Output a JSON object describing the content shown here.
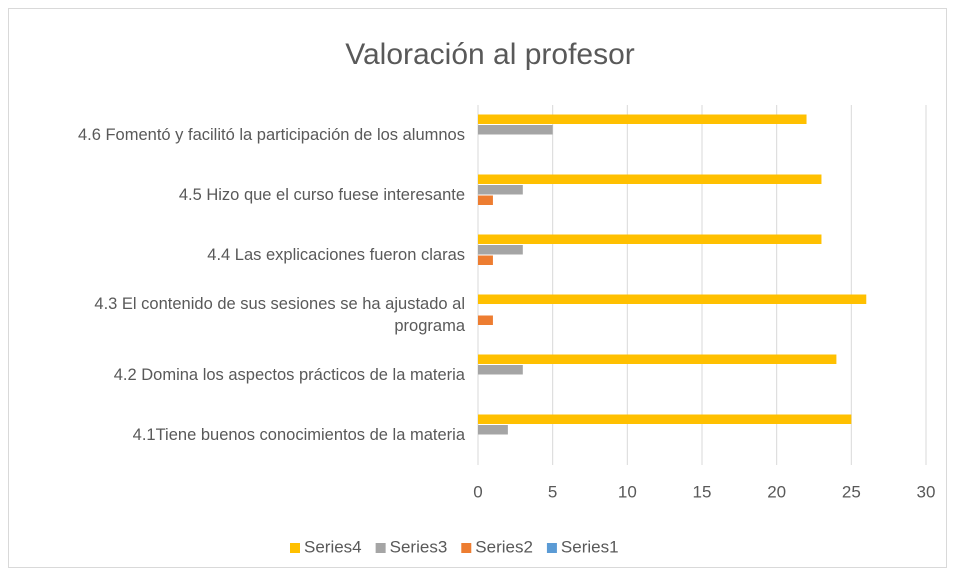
{
  "chart_data": {
    "type": "hbar",
    "title": "Valoración al profesor",
    "categories": [
      "4.6 Fomentó y facilitó la participación de los alumnos",
      "4.5 Hizo que el curso fuese interesante",
      "4.4 Las explicaciones fueron claras",
      "4.3 El contenido de sus sesiones se ha ajustado al programa",
      "4.2 Domina los aspectos prácticos de la materia",
      "4.1Tiene buenos conocimientos de la materia"
    ],
    "series": [
      {
        "name": "Series4",
        "color": "#ffc000",
        "values": [
          22,
          23,
          23,
          26,
          24,
          25
        ]
      },
      {
        "name": "Series3",
        "color": "#a5a5a5",
        "values": [
          5,
          3,
          3,
          0,
          3,
          2
        ]
      },
      {
        "name": "Series2",
        "color": "#ed7d31",
        "values": [
          0,
          1,
          1,
          1,
          0,
          0
        ]
      },
      {
        "name": "Series1",
        "color": "#5b9bd5",
        "values": [
          0,
          0,
          0,
          0,
          0,
          0
        ]
      }
    ],
    "xlim": [
      0,
      30
    ],
    "xticks": [
      0,
      5,
      10,
      15,
      20,
      25,
      30
    ],
    "grid": true,
    "legend": "bottom"
  }
}
